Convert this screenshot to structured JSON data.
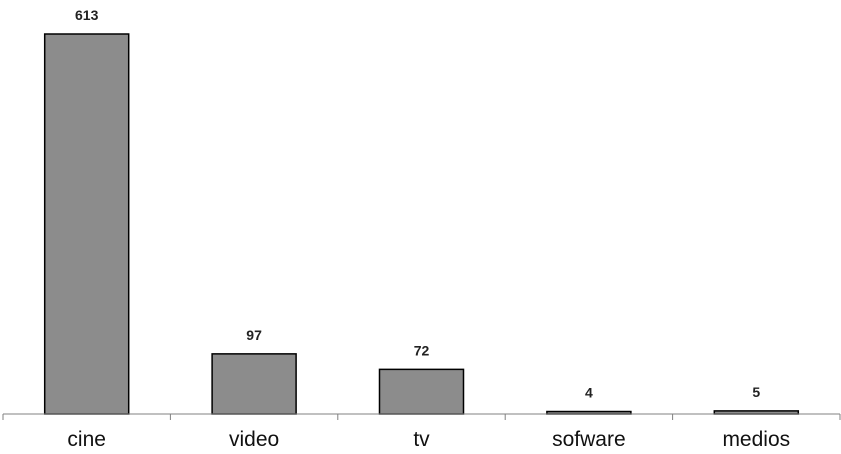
{
  "chart_data": {
    "type": "bar",
    "categories": [
      "cine",
      "video",
      "tv",
      "sofware",
      "medios"
    ],
    "values": [
      613,
      97,
      72,
      4,
      5
    ],
    "data_labels": [
      "613",
      "97",
      "72",
      "4",
      "5"
    ],
    "title": "",
    "xlabel": "",
    "ylabel": "",
    "ylim": [
      0,
      613
    ],
    "grid": false,
    "legend": "none",
    "colors": {
      "bar_fill": "#8c8c8c",
      "bar_stroke": "#000000",
      "axis": "#808080"
    }
  }
}
